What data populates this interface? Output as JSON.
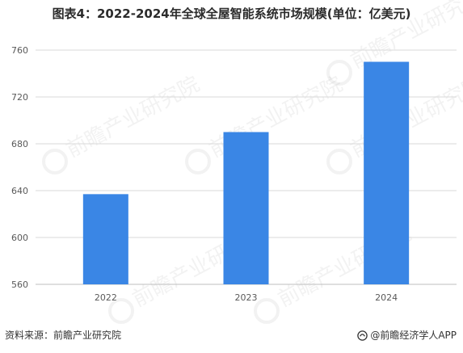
{
  "title": "图表4：2022-2024年全球全屋智能系统市场规模(单位：亿美元)",
  "source": "资料来源：前瞻产业研究院",
  "brand": "@前瞻经济学人APP",
  "watermark": "前瞻产业研究院",
  "colors": {
    "bar": "#3a86e5",
    "grid": "#d9d9d9",
    "axis": "#bfbfbf",
    "text": "#595959"
  },
  "chart_data": {
    "type": "bar",
    "categories": [
      "2022",
      "2023",
      "2024"
    ],
    "values": [
      637,
      690,
      750
    ],
    "ylim": [
      560,
      760
    ],
    "yticks": [
      560,
      600,
      640,
      680,
      720,
      760
    ],
    "grid": true,
    "xlabel": "",
    "ylabel": ""
  }
}
